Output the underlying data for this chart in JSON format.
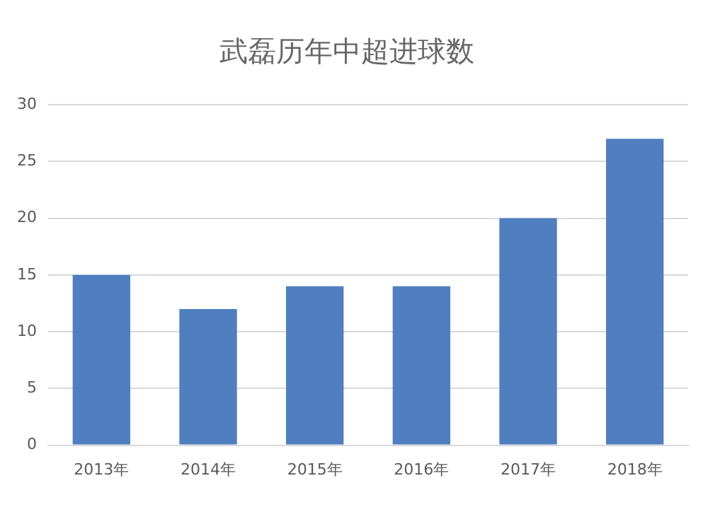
{
  "chart_data": {
    "type": "bar",
    "title": "武磊历年中超进球数",
    "categories": [
      "2013年",
      "2014年",
      "2015年",
      "2016年",
      "2017年",
      "2018年"
    ],
    "values": [
      15,
      12,
      14,
      14,
      20,
      27
    ],
    "color": "#4f7fc1",
    "ylim": [
      0,
      30
    ],
    "yticks": [
      0,
      5,
      10,
      15,
      20,
      25,
      30
    ],
    "grid": "y",
    "legend": false
  }
}
